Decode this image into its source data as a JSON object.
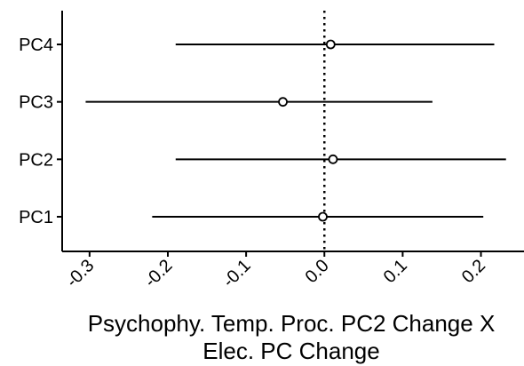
{
  "chart_data": {
    "type": "forest",
    "title": "",
    "xlabel_lines": [
      "Psychophy. Temp. Proc. PC2 Change X",
      "Elec. PC Change"
    ],
    "ylabel": "",
    "categories": [
      "PC4",
      "PC3",
      "PC2",
      "PC1"
    ],
    "estimates": [
      0.008,
      -0.053,
      0.011,
      -0.002
    ],
    "ci_low": [
      -0.19,
      -0.305,
      -0.19,
      -0.22
    ],
    "ci_high": [
      0.217,
      0.138,
      0.232,
      0.203
    ],
    "xlim": [
      -0.335,
      0.255
    ],
    "xticks": [
      -0.3,
      -0.2,
      -0.1,
      0.0,
      0.1,
      0.2
    ],
    "xtick_labels": [
      "-0.3",
      "-0.2",
      "-0.1",
      "0.0",
      "0.1",
      "0.2"
    ],
    "reference_line": 0,
    "reference_line_style": "dotted",
    "grid": false,
    "legend": "none",
    "colors": {
      "line": "#000000",
      "point_stroke": "#000000",
      "point_fill": "#ffffff",
      "background": "#ffffff"
    }
  }
}
